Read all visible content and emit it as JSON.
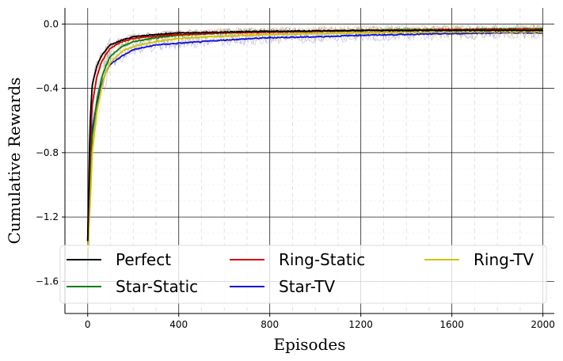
{
  "chart_data": {
    "type": "line",
    "title": "",
    "xlabel": "Episodes",
    "ylabel": "Cumulative Rewards",
    "xlim": [
      -100,
      2050
    ],
    "ylim": [
      -1.8,
      0.1
    ],
    "xticks": [
      0,
      400,
      800,
      1200,
      1600,
      2000
    ],
    "yticks": [
      0.0,
      -0.4,
      -0.8,
      -1.2,
      -1.6
    ],
    "xtick_labels": [
      "0",
      "400",
      "800",
      "1200",
      "1600",
      "2000"
    ],
    "ytick_labels": [
      "0.0",
      "−0.4",
      "−0.8",
      "−1.2",
      "−1.6"
    ],
    "grid": true,
    "legend_position": "bottom",
    "legend_columns": 3,
    "x": [
      0,
      10,
      20,
      40,
      60,
      80,
      100,
      150,
      200,
      300,
      400,
      600,
      800,
      1000,
      1200,
      1400,
      1600,
      1800,
      2000
    ],
    "series": [
      {
        "name": "Perfect",
        "color": "#000000",
        "values": [
          -1.35,
          -0.62,
          -0.38,
          -0.26,
          -0.2,
          -0.16,
          -0.13,
          -0.1,
          -0.08,
          -0.065,
          -0.055,
          -0.05,
          -0.045,
          -0.043,
          -0.04,
          -0.04,
          -0.04,
          -0.04,
          -0.04
        ]
      },
      {
        "name": "Ring-Static",
        "color": "#d40000",
        "values": [
          -1.35,
          -0.8,
          -0.5,
          -0.33,
          -0.24,
          -0.19,
          -0.15,
          -0.11,
          -0.09,
          -0.075,
          -0.065,
          -0.055,
          -0.05,
          -0.045,
          -0.04,
          -0.04,
          -0.035,
          -0.035,
          -0.035
        ]
      },
      {
        "name": "Ring-TV",
        "color": "#d4c000",
        "values": [
          -1.4,
          -1.15,
          -0.8,
          -0.55,
          -0.4,
          -0.3,
          -0.24,
          -0.17,
          -0.14,
          -0.11,
          -0.09,
          -0.075,
          -0.065,
          -0.06,
          -0.055,
          -0.05,
          -0.05,
          -0.05,
          -0.05
        ]
      },
      {
        "name": "Star-Static",
        "color": "#0a7d0a",
        "values": [
          -1.5,
          -1.0,
          -0.7,
          -0.48,
          -0.34,
          -0.26,
          -0.2,
          -0.14,
          -0.11,
          -0.085,
          -0.07,
          -0.055,
          -0.048,
          -0.045,
          -0.04,
          -0.035,
          -0.035,
          -0.03,
          -0.03
        ]
      },
      {
        "name": "Star-TV",
        "color": "#1010d8",
        "values": [
          -1.4,
          -0.9,
          -0.65,
          -0.5,
          -0.38,
          -0.3,
          -0.25,
          -0.2,
          -0.16,
          -0.13,
          -0.12,
          -0.1,
          -0.085,
          -0.08,
          -0.07,
          -0.065,
          -0.06,
          -0.055,
          -0.055
        ]
      }
    ]
  }
}
